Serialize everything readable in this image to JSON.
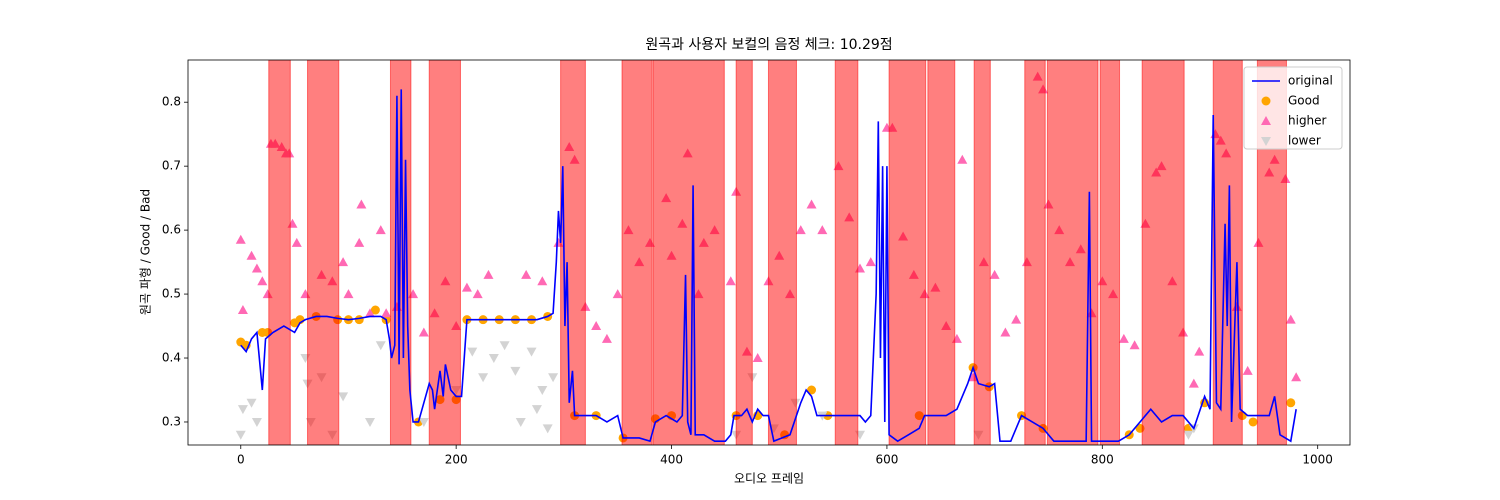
{
  "chart_data": {
    "type": "combo",
    "title": "원곡과 사용자 보컬의 음정 체크: 10.29점",
    "xlabel": "오디오 프레임",
    "ylabel": "원곡 파형 / Good / Bad",
    "xlim": [
      -49,
      1030
    ],
    "ylim": [
      0.264,
      0.866
    ],
    "xticks": [
      0,
      200,
      400,
      600,
      800,
      1000
    ],
    "yticks": [
      0.3,
      0.4,
      0.5,
      0.6,
      0.7,
      0.8
    ],
    "legend": "upper right",
    "span_color": "#ff0000",
    "shaded_spans": [
      [
        26,
        46
      ],
      [
        62,
        91
      ],
      [
        139,
        158
      ],
      [
        175,
        204
      ],
      [
        297,
        320
      ],
      [
        354,
        382
      ],
      [
        383,
        449
      ],
      [
        460,
        475
      ],
      [
        490,
        516
      ],
      [
        552,
        573
      ],
      [
        602,
        636
      ],
      [
        638,
        663
      ],
      [
        681,
        696
      ],
      [
        728,
        747
      ],
      [
        749,
        796
      ],
      [
        798,
        816
      ],
      [
        837,
        876
      ],
      [
        903,
        930
      ],
      [
        944,
        971
      ]
    ],
    "series": [
      {
        "name": "original",
        "type": "line",
        "color": "#0000ff",
        "x": [
          0,
          5,
          10,
          15,
          20,
          23,
          30,
          40,
          50,
          55,
          60,
          70,
          80,
          90,
          100,
          110,
          120,
          130,
          135,
          138,
          140,
          143,
          145,
          147,
          149,
          151,
          153,
          155,
          157,
          160,
          165,
          170,
          175,
          178,
          180,
          185,
          188,
          190,
          195,
          200,
          205,
          210,
          220,
          240,
          260,
          275,
          285,
          290,
          293,
          295,
          297,
          299,
          301,
          303,
          305,
          308,
          310,
          320,
          330,
          340,
          350,
          355,
          370,
          380,
          385,
          395,
          405,
          410,
          413,
          415,
          418,
          420,
          422,
          430,
          440,
          450,
          455,
          458,
          465,
          470,
          475,
          480,
          485,
          490,
          495,
          510,
          520,
          525,
          530,
          535,
          545,
          555,
          565,
          575,
          580,
          585,
          590,
          592,
          594,
          596,
          598,
          600,
          602,
          610,
          620,
          630,
          635,
          645,
          655,
          665,
          675,
          680,
          685,
          695,
          700,
          705,
          715,
          725,
          735,
          745,
          755,
          770,
          785,
          788,
          790,
          800,
          815,
          825,
          835,
          845,
          855,
          865,
          875,
          885,
          895,
          900,
          903,
          906,
          910,
          914,
          916,
          918,
          920,
          925,
          928,
          935,
          945,
          955,
          960,
          965,
          975,
          980
        ],
        "values": [
          0.42,
          0.41,
          0.43,
          0.44,
          0.35,
          0.43,
          0.44,
          0.45,
          0.44,
          0.455,
          0.46,
          0.465,
          0.465,
          0.462,
          0.46,
          0.462,
          0.465,
          0.465,
          0.46,
          0.43,
          0.4,
          0.42,
          0.81,
          0.39,
          0.82,
          0.4,
          0.71,
          0.45,
          0.35,
          0.3,
          0.3,
          0.33,
          0.36,
          0.35,
          0.32,
          0.38,
          0.34,
          0.39,
          0.35,
          0.34,
          0.34,
          0.46,
          0.46,
          0.46,
          0.46,
          0.46,
          0.465,
          0.47,
          0.55,
          0.63,
          0.58,
          0.7,
          0.45,
          0.55,
          0.33,
          0.38,
          0.31,
          0.31,
          0.31,
          0.3,
          0.31,
          0.275,
          0.275,
          0.27,
          0.3,
          0.31,
          0.3,
          0.31,
          0.53,
          0.3,
          0.28,
          0.67,
          0.28,
          0.28,
          0.27,
          0.27,
          0.28,
          0.31,
          0.31,
          0.32,
          0.3,
          0.32,
          0.31,
          0.31,
          0.27,
          0.28,
          0.33,
          0.35,
          0.34,
          0.31,
          0.31,
          0.31,
          0.31,
          0.31,
          0.3,
          0.31,
          0.5,
          0.77,
          0.4,
          0.7,
          0.3,
          0.7,
          0.28,
          0.27,
          0.28,
          0.29,
          0.31,
          0.31,
          0.31,
          0.32,
          0.36,
          0.385,
          0.36,
          0.355,
          0.36,
          0.27,
          0.27,
          0.31,
          0.3,
          0.29,
          0.27,
          0.27,
          0.27,
          0.66,
          0.27,
          0.27,
          0.27,
          0.28,
          0.3,
          0.32,
          0.3,
          0.31,
          0.31,
          0.29,
          0.34,
          0.32,
          0.78,
          0.33,
          0.32,
          0.61,
          0.45,
          0.67,
          0.3,
          0.55,
          0.32,
          0.31,
          0.31,
          0.31,
          0.34,
          0.28,
          0.27,
          0.32
        ]
      },
      {
        "name": "Good",
        "type": "scatter",
        "marker": "circle",
        "color": "#ffa500",
        "x": [
          0,
          5,
          20,
          25,
          50,
          55,
          70,
          90,
          100,
          110,
          125,
          135,
          165,
          185,
          200,
          210,
          225,
          240,
          255,
          270,
          285,
          310,
          330,
          355,
          385,
          400,
          460,
          480,
          505,
          530,
          545,
          630,
          680,
          695,
          725,
          745,
          825,
          835,
          880,
          895,
          930,
          940,
          975
        ],
        "values": [
          0.425,
          0.42,
          0.44,
          0.44,
          0.455,
          0.46,
          0.465,
          0.46,
          0.46,
          0.46,
          0.475,
          0.46,
          0.3,
          0.335,
          0.335,
          0.46,
          0.46,
          0.46,
          0.46,
          0.46,
          0.465,
          0.31,
          0.31,
          0.275,
          0.305,
          0.31,
          0.31,
          0.31,
          0.28,
          0.35,
          0.31,
          0.31,
          0.385,
          0.355,
          0.31,
          0.29,
          0.28,
          0.29,
          0.29,
          0.33,
          0.31,
          0.3,
          0.33
        ]
      },
      {
        "name": "higher",
        "type": "scatter",
        "marker": "triangle-up",
        "color": "#ff69b4",
        "x": [
          0,
          2,
          10,
          15,
          20,
          25,
          28,
          32,
          38,
          42,
          45,
          48,
          52,
          60,
          75,
          85,
          95,
          100,
          110,
          112,
          120,
          130,
          135,
          145,
          160,
          170,
          180,
          190,
          200,
          210,
          220,
          230,
          265,
          280,
          295,
          305,
          310,
          320,
          330,
          340,
          350,
          360,
          370,
          380,
          395,
          400,
          410,
          415,
          425,
          430,
          440,
          455,
          460,
          470,
          480,
          490,
          500,
          510,
          520,
          530,
          540,
          555,
          565,
          575,
          585,
          600,
          605,
          615,
          625,
          635,
          645,
          655,
          665,
          670,
          680,
          690,
          700,
          710,
          720,
          730,
          740,
          745,
          750,
          760,
          770,
          780,
          790,
          800,
          810,
          820,
          830,
          840,
          850,
          855,
          865,
          875,
          885,
          890,
          905,
          910,
          915,
          925,
          935,
          945,
          955,
          960,
          970,
          975,
          980
        ],
        "values": [
          0.585,
          0.475,
          0.56,
          0.54,
          0.52,
          0.5,
          0.735,
          0.735,
          0.73,
          0.72,
          0.72,
          0.61,
          0.58,
          0.5,
          0.53,
          0.52,
          0.55,
          0.5,
          0.58,
          0.64,
          0.47,
          0.6,
          0.47,
          0.48,
          0.5,
          0.44,
          0.47,
          0.52,
          0.45,
          0.51,
          0.5,
          0.53,
          0.53,
          0.52,
          0.58,
          0.73,
          0.71,
          0.48,
          0.45,
          0.43,
          0.5,
          0.6,
          0.55,
          0.58,
          0.65,
          0.56,
          0.61,
          0.72,
          0.5,
          0.58,
          0.6,
          0.52,
          0.66,
          0.41,
          0.4,
          0.52,
          0.56,
          0.5,
          0.6,
          0.64,
          0.6,
          0.7,
          0.62,
          0.54,
          0.55,
          0.76,
          0.76,
          0.59,
          0.53,
          0.5,
          0.51,
          0.45,
          0.43,
          0.71,
          0.37,
          0.55,
          0.53,
          0.44,
          0.46,
          0.55,
          0.84,
          0.82,
          0.64,
          0.6,
          0.55,
          0.57,
          0.47,
          0.52,
          0.5,
          0.43,
          0.42,
          0.61,
          0.69,
          0.7,
          0.52,
          0.44,
          0.36,
          0.41,
          0.75,
          0.74,
          0.72,
          0.48,
          0.38,
          0.58,
          0.69,
          0.71,
          0.68,
          0.46,
          0.37
        ]
      },
      {
        "name": "lower",
        "type": "scatter",
        "marker": "triangle-down",
        "color": "#d3d3d3",
        "x": [
          0,
          2,
          10,
          15,
          60,
          62,
          65,
          75,
          85,
          95,
          120,
          130,
          170,
          200,
          215,
          225,
          235,
          245,
          255,
          260,
          270,
          275,
          280,
          285,
          290,
          460,
          475,
          495,
          515,
          540,
          575,
          685,
          880,
          885
        ],
        "values": [
          0.28,
          0.32,
          0.33,
          0.3,
          0.4,
          0.36,
          0.3,
          0.37,
          0.28,
          0.34,
          0.3,
          0.42,
          0.3,
          0.35,
          0.41,
          0.37,
          0.4,
          0.42,
          0.38,
          0.3,
          0.41,
          0.32,
          0.35,
          0.29,
          0.37,
          0.28,
          0.37,
          0.29,
          0.33,
          0.31,
          0.28,
          0.28,
          0.28,
          0.29
        ]
      }
    ]
  }
}
